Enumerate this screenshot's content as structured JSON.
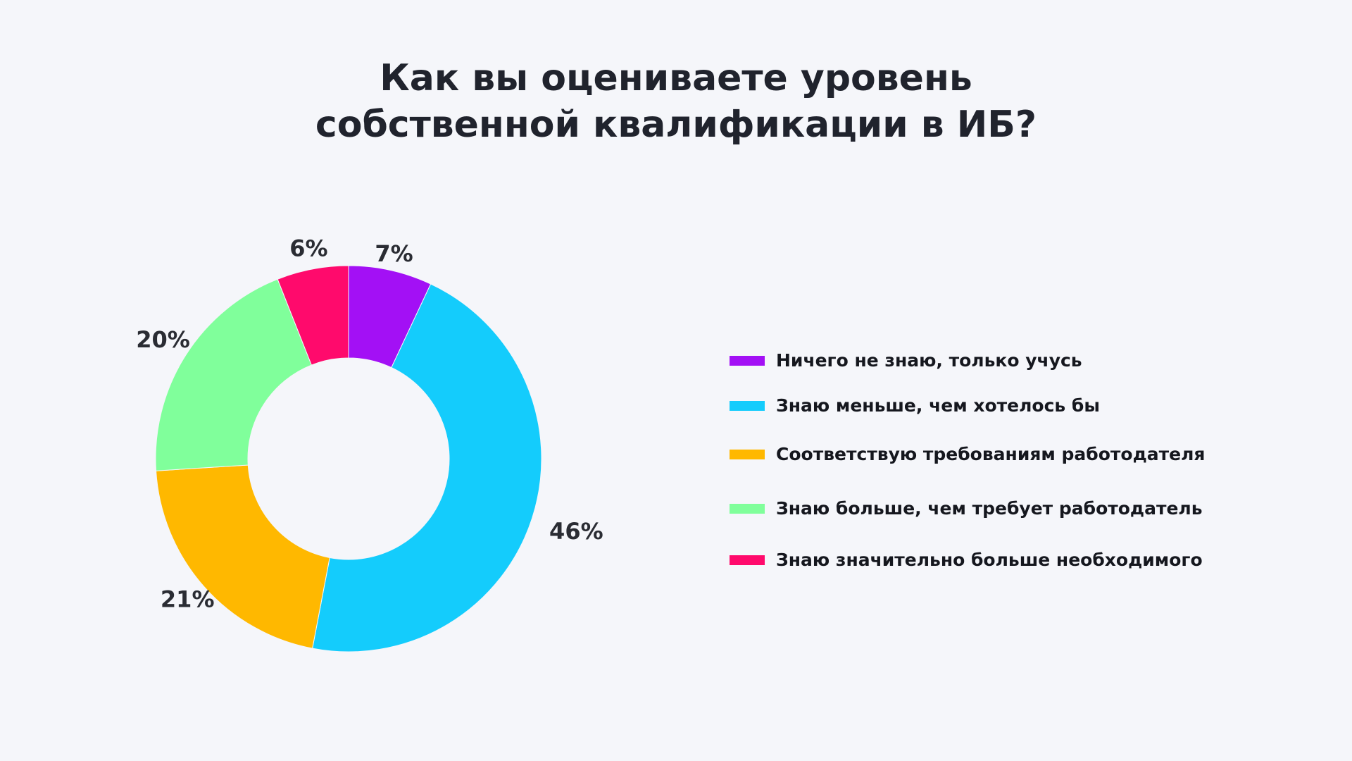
{
  "title": {
    "line1": "Как вы оцениваете уровень",
    "line2": "собственной квалификации в ИБ?"
  },
  "chart_data": {
    "type": "pie",
    "donut": true,
    "unit": "%",
    "slices": [
      {
        "label": "Ничего не знаю, только учусь",
        "value": 7,
        "display": "7%",
        "color": "#a310f5"
      },
      {
        "label": "Знаю меньше, чем хотелось бы",
        "value": 46,
        "display": "46%",
        "color": "#14ccfc"
      },
      {
        "label": "Соответствую требованиям работодателя",
        "value": 21,
        "display": "21%",
        "color": "#ffb800"
      },
      {
        "label": "Знаю больше, чем требует работодатель",
        "value": 20,
        "display": "20%",
        "color": "#80ff9b"
      },
      {
        "label": "Знаю значительно больше необходимого",
        "value": 6,
        "display": "6%",
        "color": "#ff0a6c"
      }
    ],
    "legend_position": "right"
  }
}
